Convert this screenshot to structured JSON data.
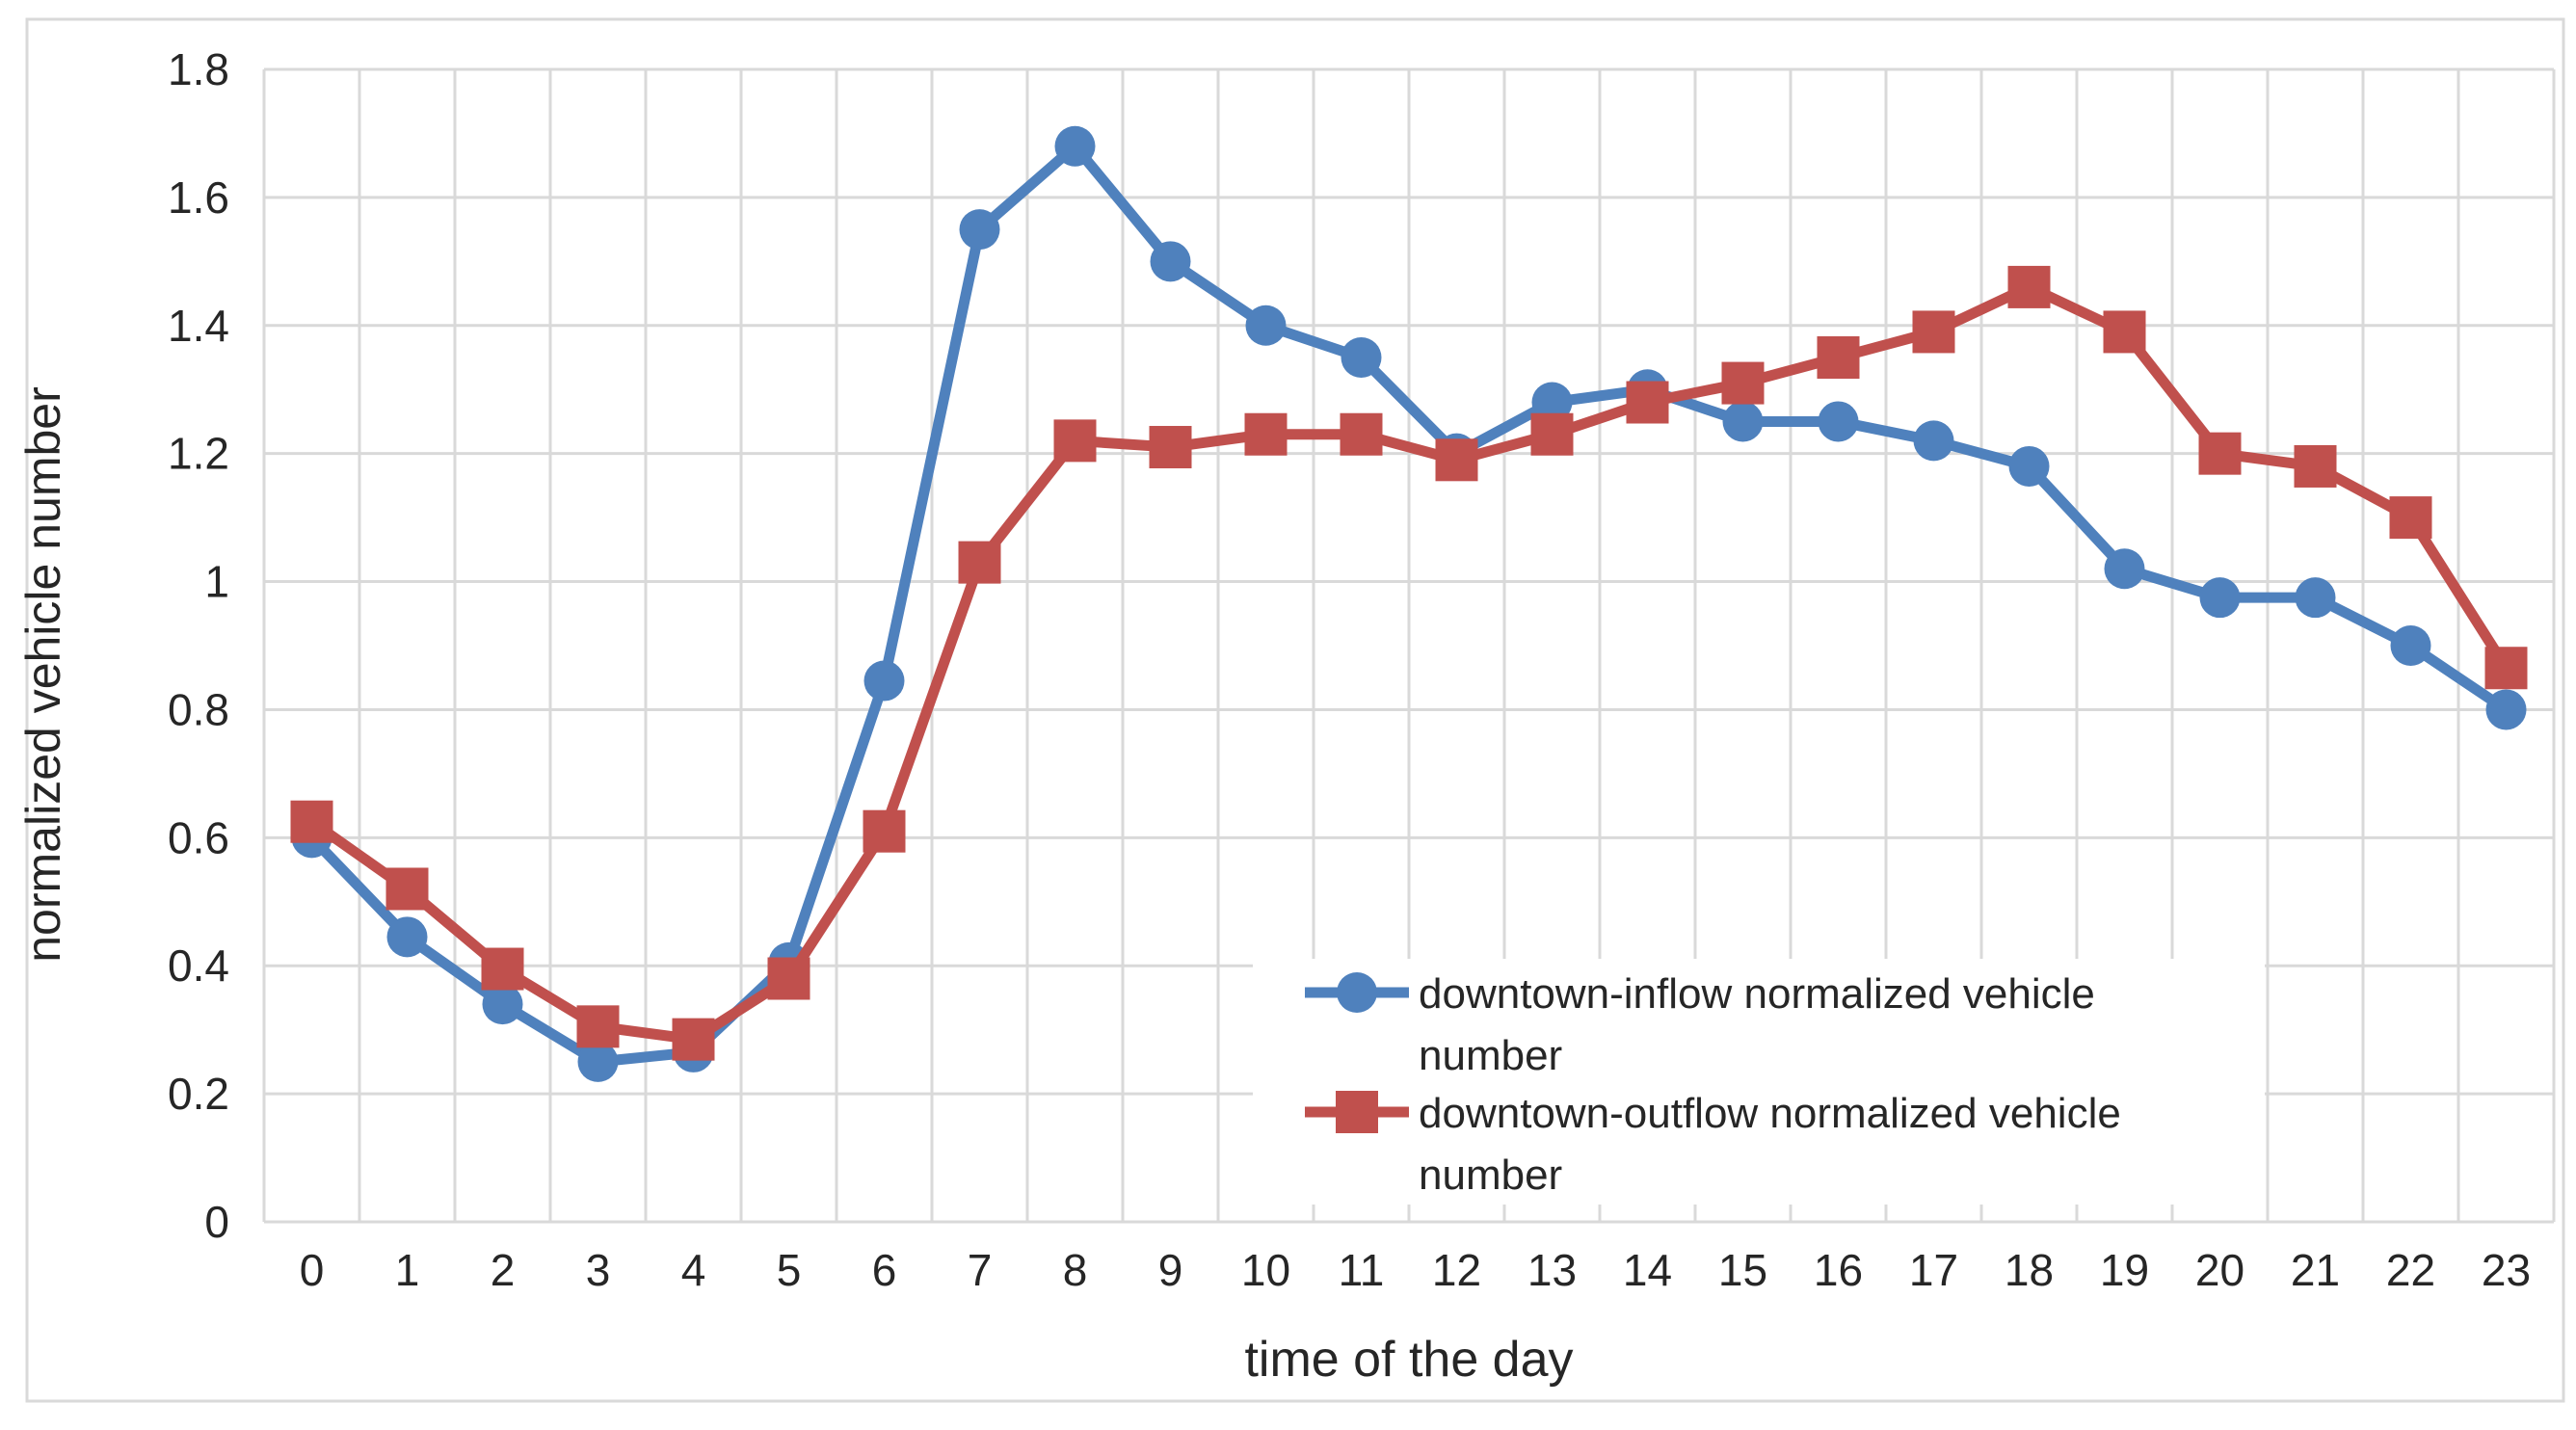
{
  "frame": {
    "background": "#ffffff",
    "border_color": "#d9d9d9"
  },
  "chart_data": {
    "type": "line",
    "title": "",
    "xlabel": "time of the day",
    "ylabel": "normalized vehicle number",
    "categories": [
      "0",
      "1",
      "2",
      "3",
      "4",
      "5",
      "6",
      "7",
      "8",
      "9",
      "10",
      "11",
      "12",
      "13",
      "14",
      "15",
      "16",
      "17",
      "18",
      "19",
      "20",
      "21",
      "22",
      "23"
    ],
    "ylim": [
      0,
      1.8
    ],
    "ytick_step": 0.2,
    "yticks": [
      "0",
      "0.2",
      "0.4",
      "0.6",
      "0.8",
      "1",
      "1.2",
      "1.4",
      "1.6",
      "1.8"
    ],
    "grid": {
      "horizontal": true,
      "vertical": true,
      "color": "#d9d9d9"
    },
    "text_color": "#262626",
    "legend": {
      "position": "inside-lower-right",
      "background": "#ffffff"
    },
    "series": [
      {
        "name": "downtown-inflow normalized vehicle number",
        "legend_lines": [
          "downtown-inflow normalized vehicle",
          "number"
        ],
        "color": "#4f81bd",
        "marker": "circle",
        "values": [
          0.6,
          0.445,
          0.34,
          0.25,
          0.265,
          0.405,
          0.845,
          1.55,
          1.68,
          1.5,
          1.4,
          1.35,
          1.2,
          1.28,
          1.3,
          1.25,
          1.25,
          1.22,
          1.18,
          1.02,
          0.975,
          0.975,
          0.9,
          0.8
        ]
      },
      {
        "name": "downtown-outflow normalized vehicle number",
        "legend_lines": [
          "downtown-outflow normalized vehicle",
          "number"
        ],
        "color": "#c0504d",
        "marker": "square",
        "values": [
          0.625,
          0.52,
          0.395,
          0.305,
          0.285,
          0.38,
          0.61,
          1.03,
          1.22,
          1.21,
          1.23,
          1.23,
          1.19,
          1.23,
          1.28,
          1.31,
          1.35,
          1.39,
          1.46,
          1.39,
          1.2,
          1.18,
          1.1,
          0.865
        ]
      }
    ]
  }
}
